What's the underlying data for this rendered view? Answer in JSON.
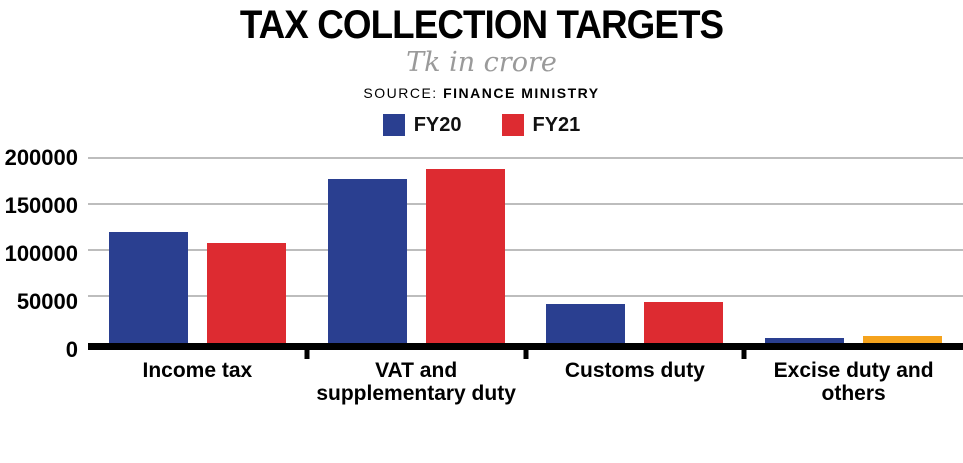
{
  "header": {
    "title": "TAX COLLECTION TARGETS",
    "subtitle": "Tk in crore",
    "source_label": "SOURCE:",
    "source_value": "FINANCE MINISTRY"
  },
  "chart_data": {
    "type": "bar",
    "title": "TAX COLLECTION TARGETS",
    "subtitle": "Tk in crore",
    "source": "SOURCE: FINANCE MINISTRY",
    "unit": "Tk in crore",
    "categories": [
      "Income tax",
      "VAT and supplementary duty",
      "Customs duty",
      "Excise duty and others"
    ],
    "series": [
      {
        "name": "FY20",
        "color": "#2A3F90",
        "values": [
          120000,
          177000,
          42000,
          5000
        ]
      },
      {
        "name": "FY21",
        "color": "#DD2B31",
        "values": [
          108000,
          188000,
          44000,
          7000
        ],
        "bar_colors": [
          "#DD2B31",
          "#DD2B31",
          "#DD2B31",
          "#F5A31D"
        ]
      }
    ],
    "ylim": [
      0,
      200000
    ],
    "yticks": [
      0,
      50000,
      100000,
      150000,
      200000
    ],
    "ytick_labels": [
      "0",
      "50000",
      "100000",
      "150000",
      "200000"
    ],
    "grid": true,
    "gridline_color": "#BDBDBD",
    "axis_color": "#000000",
    "legend_position": "top"
  }
}
